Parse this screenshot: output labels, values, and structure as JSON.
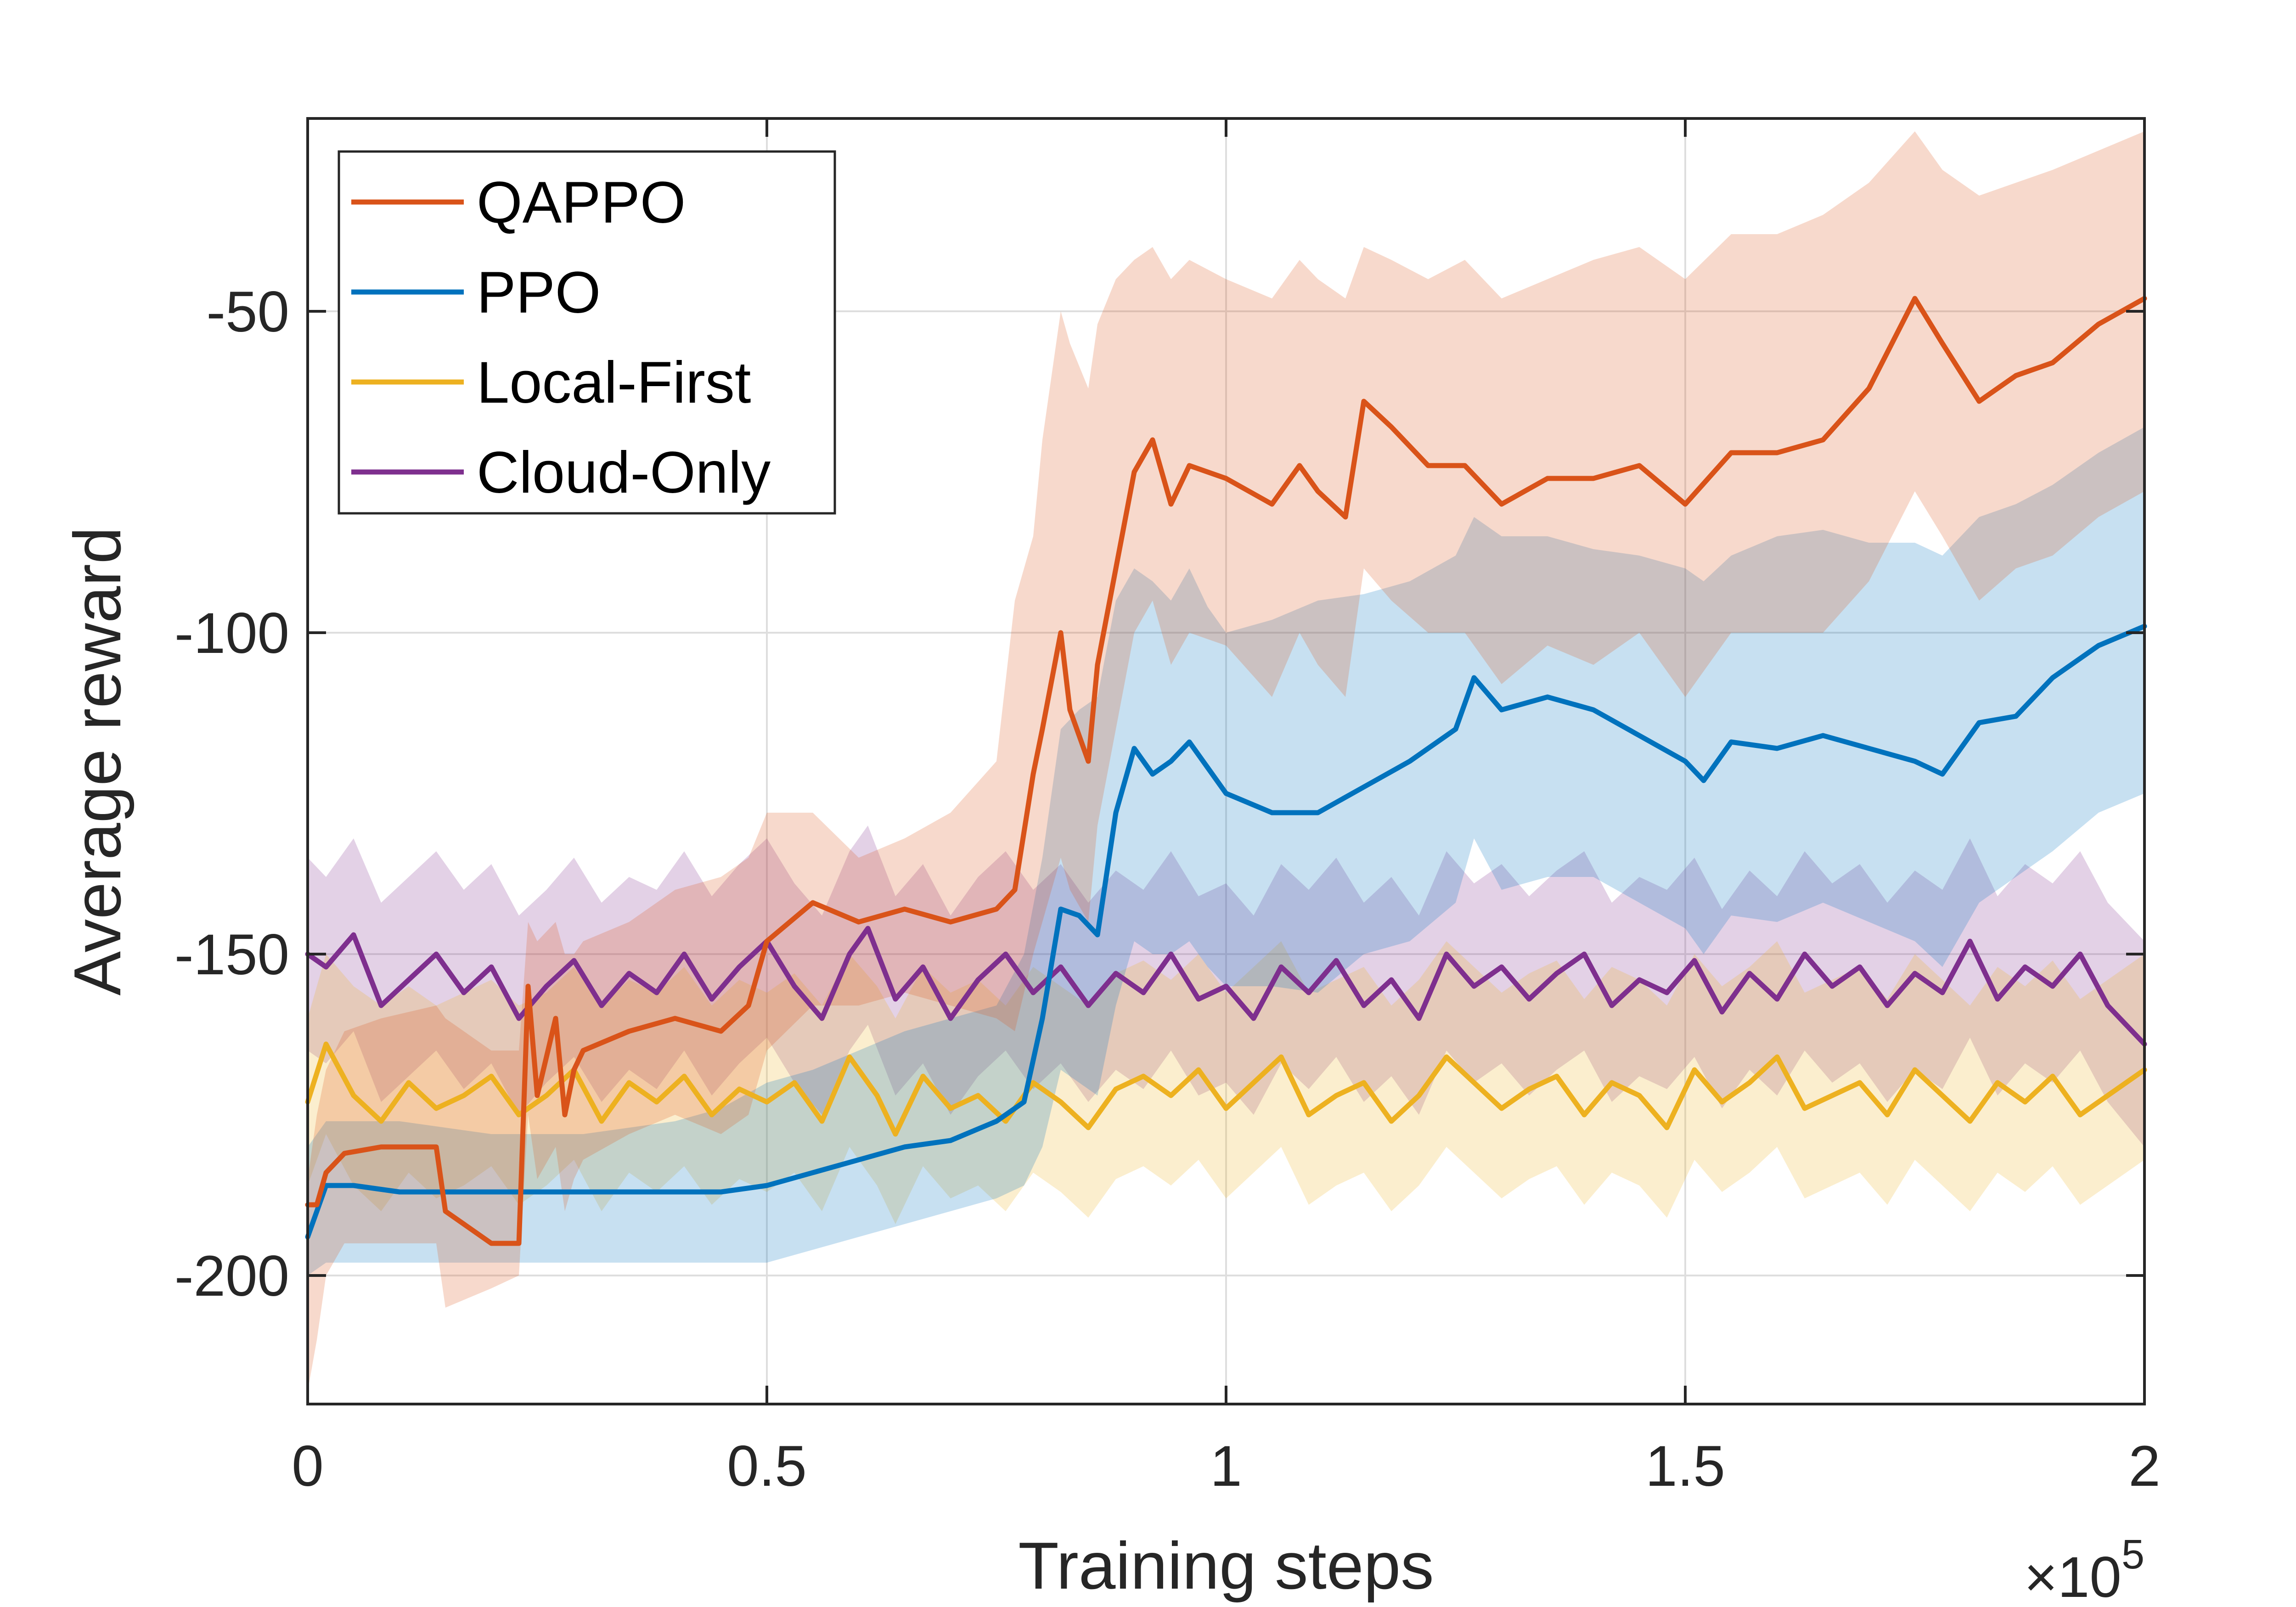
{
  "chart_data": {
    "type": "line",
    "title": "",
    "xlabel": "Training steps",
    "ylabel": "Average reward",
    "x_exponent_label": "×10",
    "x_exponent_power": "5",
    "xlim": [
      0,
      200000
    ],
    "ylim": [
      -220,
      -20
    ],
    "xticks": [
      0,
      50000,
      100000,
      150000,
      200000
    ],
    "xtick_labels": [
      "0",
      "0.5",
      "1",
      "1.5",
      "2"
    ],
    "yticks": [
      -200,
      -150,
      -100,
      -50
    ],
    "ytick_labels": [
      "-200",
      "-150",
      "-100",
      "-50"
    ],
    "grid": true,
    "legend_position": "top-left",
    "series": [
      {
        "name": "QAPPO",
        "color": "#D95319",
        "x": [
          0,
          1000,
          2000,
          4000,
          8000,
          14000,
          15000,
          20000,
          23000,
          24000,
          25000,
          27000,
          28000,
          29000,
          30000,
          35000,
          40000,
          45000,
          48000,
          50000,
          55000,
          60000,
          65000,
          70000,
          75000,
          77000,
          79000,
          80000,
          82000,
          83000,
          85000,
          86000,
          88000,
          90000,
          92000,
          94000,
          96000,
          100000,
          105000,
          108000,
          110000,
          113000,
          115000,
          118000,
          122000,
          126000,
          130000,
          135000,
          140000,
          145000,
          150000,
          155000,
          160000,
          165000,
          170000,
          175000,
          178000,
          182000,
          186000,
          190000,
          195000,
          200000
        ],
        "values": [
          -189,
          -189,
          -184,
          -181,
          -180,
          -180,
          -190,
          -195,
          -195,
          -155,
          -172,
          -160,
          -175,
          -168,
          -165,
          -162,
          -160,
          -162,
          -158,
          -148,
          -142,
          -145,
          -143,
          -145,
          -143,
          -140,
          -122,
          -115,
          -100,
          -112,
          -120,
          -105,
          -90,
          -75,
          -70,
          -80,
          -74,
          -76,
          -80,
          -74,
          -78,
          -82,
          -64,
          -68,
          -74,
          -74,
          -80,
          -76,
          -76,
          -74,
          -80,
          -72,
          -72,
          -70,
          -62,
          -48,
          -55,
          -64,
          -60,
          -58,
          -52,
          -48
        ],
        "band_upper": [
          -185,
          -175,
          -168,
          -162,
          -160,
          -158,
          -160,
          -165,
          -165,
          -145,
          -148,
          -145,
          -150,
          -150,
          -148,
          -145,
          -140,
          -138,
          -135,
          -128,
          -128,
          -135,
          -132,
          -128,
          -120,
          -95,
          -85,
          -70,
          -50,
          -55,
          -62,
          -52,
          -45,
          -42,
          -40,
          -45,
          -42,
          -45,
          -48,
          -42,
          -45,
          -48,
          -40,
          -42,
          -45,
          -42,
          -48,
          -45,
          -42,
          -40,
          -45,
          -38,
          -38,
          -35,
          -30,
          -22,
          -28,
          -32,
          -30,
          -28,
          -25,
          -22
        ],
        "band_lower": [
          -218,
          -210,
          -200,
          -195,
          -195,
          -195,
          -205,
          -202,
          -200,
          -175,
          -185,
          -180,
          -190,
          -185,
          -182,
          -178,
          -175,
          -178,
          -175,
          -165,
          -158,
          -158,
          -156,
          -158,
          -160,
          -162,
          -150,
          -145,
          -135,
          -140,
          -145,
          -130,
          -115,
          -100,
          -95,
          -105,
          -100,
          -102,
          -110,
          -100,
          -105,
          -110,
          -90,
          -95,
          -100,
          -100,
          -108,
          -102,
          -105,
          -100,
          -110,
          -100,
          -100,
          -100,
          -92,
          -78,
          -85,
          -95,
          -90,
          -88,
          -82,
          -78
        ]
      },
      {
        "name": "PPO",
        "color": "#0072BD",
        "x": [
          0,
          2000,
          5000,
          10000,
          20000,
          30000,
          40000,
          45000,
          50000,
          55000,
          60000,
          65000,
          70000,
          75000,
          78000,
          80000,
          82000,
          84000,
          86000,
          88000,
          90000,
          92000,
          94000,
          96000,
          98000,
          100000,
          105000,
          110000,
          115000,
          120000,
          125000,
          127000,
          130000,
          135000,
          140000,
          145000,
          150000,
          152000,
          155000,
          160000,
          165000,
          170000,
          175000,
          178000,
          182000,
          186000,
          190000,
          195000,
          200000
        ],
        "values": [
          -194,
          -186,
          -186,
          -187,
          -187,
          -187,
          -187,
          -187,
          -186,
          -184,
          -182,
          -180,
          -179,
          -176,
          -173,
          -160,
          -143,
          -144,
          -147,
          -128,
          -118,
          -122,
          -120,
          -117,
          -121,
          -125,
          -128,
          -128,
          -124,
          -120,
          -115,
          -107,
          -112,
          -110,
          -112,
          -116,
          -120,
          -123,
          -117,
          -118,
          -116,
          -118,
          -120,
          -122,
          -114,
          -113,
          -107,
          -102,
          -99
        ],
        "band_upper": [
          -180,
          -176,
          -176,
          -176,
          -178,
          -178,
          -176,
          -174,
          -170,
          -168,
          -165,
          -162,
          -160,
          -158,
          -150,
          -135,
          -115,
          -112,
          -110,
          -95,
          -90,
          -92,
          -95,
          -90,
          -96,
          -100,
          -98,
          -95,
          -94,
          -92,
          -88,
          -82,
          -85,
          -85,
          -87,
          -88,
          -90,
          -92,
          -88,
          -85,
          -84,
          -86,
          -86,
          -88,
          -82,
          -80,
          -77,
          -72,
          -68
        ],
        "band_lower": [
          -200,
          -198,
          -198,
          -198,
          -198,
          -198,
          -198,
          -198,
          -198,
          -196,
          -194,
          -192,
          -190,
          -188,
          -186,
          -180,
          -168,
          -170,
          -172,
          -158,
          -148,
          -150,
          -150,
          -148,
          -152,
          -155,
          -155,
          -156,
          -150,
          -148,
          -142,
          -132,
          -140,
          -138,
          -138,
          -142,
          -146,
          -150,
          -144,
          -145,
          -142,
          -145,
          -148,
          -152,
          -142,
          -138,
          -134,
          -128,
          -125
        ]
      },
      {
        "name": "Local-First",
        "color": "#EDB120",
        "x": [
          0,
          2000,
          5000,
          8000,
          11000,
          14000,
          17000,
          20000,
          23000,
          26000,
          29000,
          32000,
          35000,
          38000,
          41000,
          44000,
          47000,
          50000,
          53000,
          56000,
          59000,
          62000,
          64000,
          67000,
          70000,
          73000,
          76000,
          79000,
          82000,
          85000,
          88000,
          91000,
          94000,
          97000,
          100000,
          103000,
          106000,
          109000,
          112000,
          115000,
          118000,
          121000,
          124000,
          127000,
          130000,
          133000,
          136000,
          139000,
          142000,
          145000,
          148000,
          151000,
          154000,
          157000,
          160000,
          163000,
          166000,
          169000,
          172000,
          175000,
          178000,
          181000,
          184000,
          187000,
          190000,
          193000,
          196000,
          200000
        ],
        "values": [
          -173,
          -164,
          -172,
          -176,
          -170,
          -174,
          -172,
          -169,
          -175,
          -172,
          -168,
          -176,
          -170,
          -173,
          -169,
          -175,
          -171,
          -173,
          -170,
          -176,
          -166,
          -172,
          -178,
          -169,
          -174,
          -172,
          -176,
          -170,
          -173,
          -177,
          -171,
          -169,
          -172,
          -168,
          -174,
          -170,
          -166,
          -175,
          -172,
          -170,
          -176,
          -172,
          -166,
          -170,
          -174,
          -171,
          -169,
          -175,
          -170,
          -172,
          -177,
          -168,
          -173,
          -170,
          -166,
          -174,
          -172,
          -170,
          -175,
          -168,
          -172,
          -176,
          -170,
          -173,
          -169,
          -175,
          -172,
          -168
        ],
        "band_upper": [
          -160,
          -150,
          -155,
          -158,
          -155,
          -158,
          -156,
          -154,
          -158,
          -156,
          -152,
          -158,
          -154,
          -156,
          -152,
          -158,
          -154,
          -156,
          -153,
          -158,
          -150,
          -155,
          -160,
          -152,
          -156,
          -154,
          -158,
          -152,
          -155,
          -158,
          -153,
          -151,
          -154,
          -150,
          -156,
          -152,
          -148,
          -156,
          -154,
          -152,
          -158,
          -154,
          -148,
          -152,
          -156,
          -153,
          -151,
          -157,
          -152,
          -154,
          -158,
          -150,
          -155,
          -152,
          -148,
          -156,
          -154,
          -152,
          -157,
          -150,
          -154,
          -158,
          -152,
          -155,
          -151,
          -157,
          -154,
          -150
        ],
        "band_lower": [
          -186,
          -178,
          -186,
          -190,
          -184,
          -188,
          -186,
          -183,
          -189,
          -186,
          -182,
          -190,
          -184,
          -187,
          -183,
          -189,
          -185,
          -187,
          -184,
          -190,
          -180,
          -186,
          -192,
          -183,
          -188,
          -186,
          -190,
          -184,
          -187,
          -191,
          -185,
          -183,
          -186,
          -182,
          -188,
          -184,
          -180,
          -189,
          -186,
          -184,
          -190,
          -186,
          -180,
          -184,
          -188,
          -185,
          -183,
          -189,
          -184,
          -186,
          -191,
          -182,
          -187,
          -184,
          -180,
          -188,
          -186,
          -184,
          -189,
          -182,
          -186,
          -190,
          -184,
          -187,
          -183,
          -189,
          -186,
          -182
        ]
      },
      {
        "name": "Cloud-Only",
        "color": "#7E2F8E",
        "x": [
          0,
          2000,
          5000,
          8000,
          11000,
          14000,
          17000,
          20000,
          23000,
          26000,
          29000,
          32000,
          35000,
          38000,
          41000,
          44000,
          47000,
          50000,
          53000,
          56000,
          59000,
          61000,
          64000,
          67000,
          70000,
          73000,
          76000,
          79000,
          82000,
          85000,
          88000,
          91000,
          94000,
          97000,
          100000,
          103000,
          106000,
          109000,
          112000,
          115000,
          118000,
          121000,
          124000,
          127000,
          130000,
          133000,
          136000,
          139000,
          142000,
          145000,
          148000,
          151000,
          154000,
          157000,
          160000,
          163000,
          166000,
          169000,
          172000,
          175000,
          178000,
          181000,
          184000,
          187000,
          190000,
          193000,
          196000,
          200000
        ],
        "values": [
          -150,
          -152,
          -147,
          -158,
          -154,
          -150,
          -156,
          -152,
          -160,
          -155,
          -151,
          -158,
          -153,
          -156,
          -150,
          -157,
          -152,
          -148,
          -155,
          -160,
          -150,
          -146,
          -157,
          -152,
          -160,
          -154,
          -150,
          -156,
          -152,
          -158,
          -153,
          -156,
          -150,
          -157,
          -155,
          -160,
          -152,
          -156,
          -151,
          -158,
          -154,
          -160,
          -150,
          -155,
          -152,
          -157,
          -153,
          -150,
          -158,
          -154,
          -156,
          -151,
          -159,
          -153,
          -157,
          -150,
          -155,
          -152,
          -158,
          -153,
          -156,
          -148,
          -157,
          -152,
          -155,
          -150,
          -158,
          -164
        ],
        "band_upper": [
          -135,
          -138,
          -132,
          -142,
          -138,
          -134,
          -140,
          -136,
          -144,
          -140,
          -135,
          -142,
          -138,
          -140,
          -134,
          -141,
          -136,
          -132,
          -139,
          -144,
          -134,
          -130,
          -141,
          -136,
          -144,
          -138,
          -134,
          -140,
          -136,
          -142,
          -137,
          -140,
          -134,
          -141,
          -139,
          -144,
          -136,
          -140,
          -135,
          -142,
          -138,
          -144,
          -134,
          -139,
          -136,
          -141,
          -137,
          -134,
          -142,
          -138,
          -140,
          -135,
          -143,
          -137,
          -141,
          -134,
          -139,
          -136,
          -142,
          -137,
          -140,
          -132,
          -141,
          -136,
          -139,
          -134,
          -142,
          -148
        ],
        "band_lower": [
          -165,
          -167,
          -162,
          -173,
          -169,
          -165,
          -171,
          -167,
          -175,
          -170,
          -166,
          -173,
          -168,
          -171,
          -165,
          -172,
          -167,
          -163,
          -170,
          -175,
          -165,
          -161,
          -172,
          -167,
          -175,
          -169,
          -165,
          -171,
          -167,
          -173,
          -168,
          -171,
          -165,
          -172,
          -170,
          -175,
          -167,
          -171,
          -166,
          -173,
          -169,
          -175,
          -165,
          -170,
          -167,
          -172,
          -168,
          -165,
          -173,
          -169,
          -171,
          -166,
          -174,
          -168,
          -172,
          -165,
          -170,
          -167,
          -173,
          -168,
          -171,
          -163,
          -172,
          -167,
          -170,
          -165,
          -173,
          -180
        ]
      }
    ]
  }
}
